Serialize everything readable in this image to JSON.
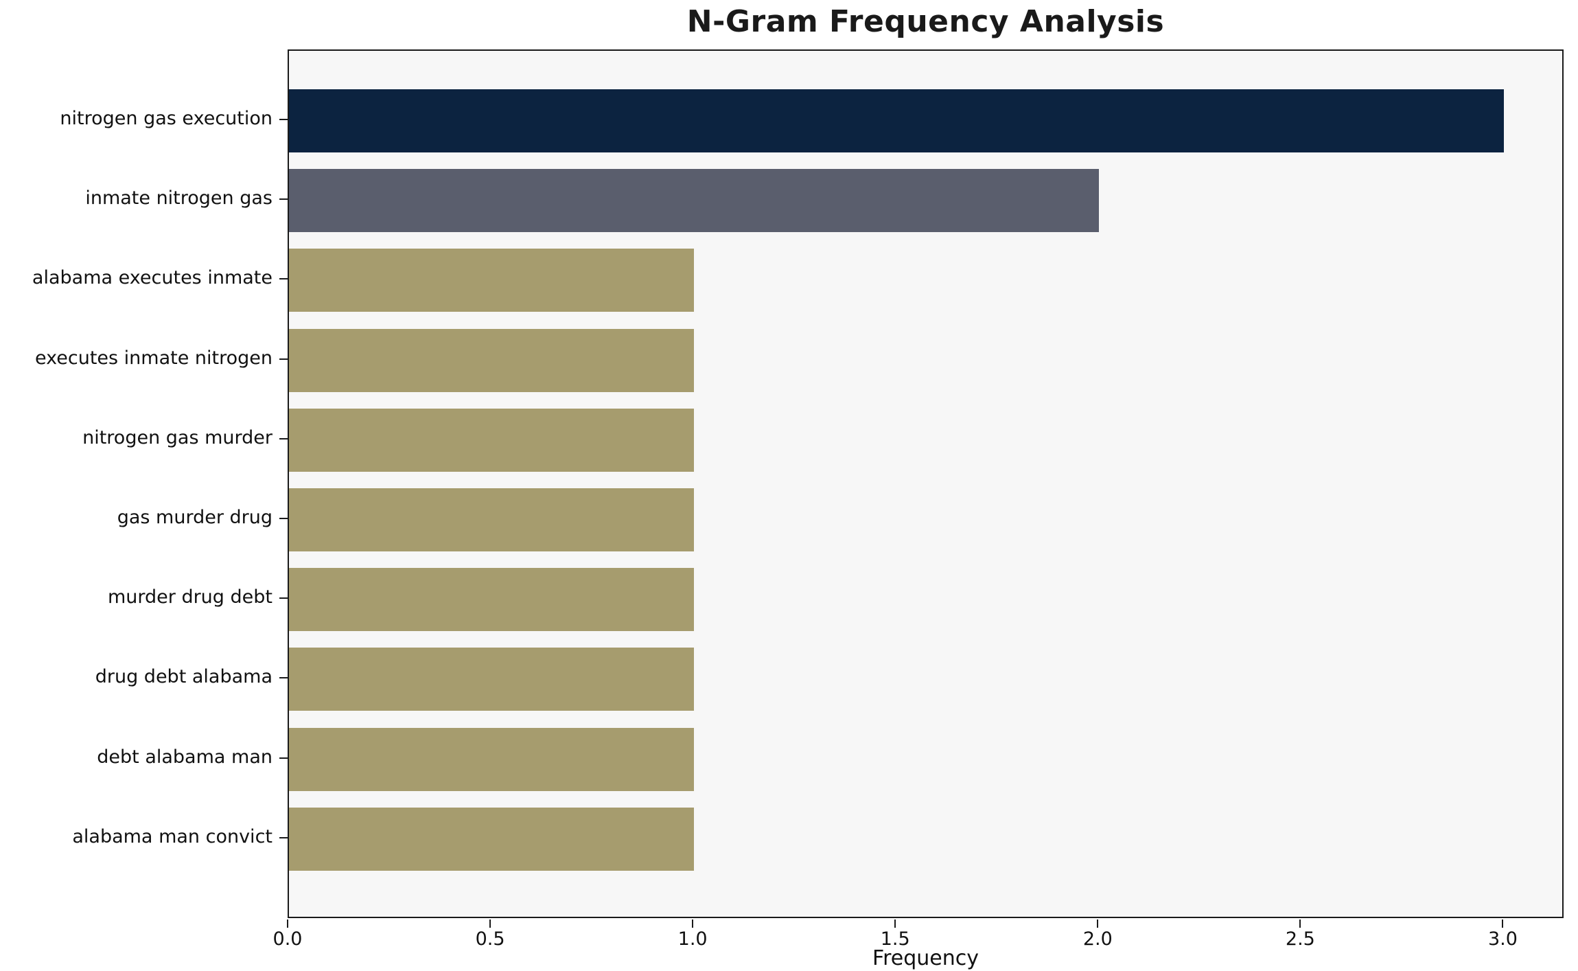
{
  "chart_data": {
    "type": "bar",
    "orientation": "horizontal",
    "title": "N-Gram Frequency Analysis",
    "xlabel": "Frequency",
    "ylabel": "",
    "categories": [
      "nitrogen gas execution",
      "inmate nitrogen gas",
      "alabama executes inmate",
      "executes inmate nitrogen",
      "nitrogen gas murder",
      "gas murder drug",
      "murder drug debt",
      "drug debt alabama",
      "debt alabama man",
      "alabama man convict"
    ],
    "values": [
      3,
      2,
      1,
      1,
      1,
      1,
      1,
      1,
      1,
      1
    ],
    "xlim": [
      0,
      3.15
    ],
    "xticks": [
      "0.0",
      "0.5",
      "1.0",
      "1.5",
      "2.0",
      "2.5",
      "3.0"
    ],
    "bar_colors": [
      "#0c2340",
      "#5a5e6d",
      "#a69c6e",
      "#a69c6e",
      "#a69c6e",
      "#a69c6e",
      "#a69c6e",
      "#a69c6e",
      "#a69c6e",
      "#a69c6e"
    ],
    "grid": false,
    "legend": null,
    "colors": {
      "figure_background": "#ffffff",
      "plot_background": "#f7f7f7",
      "spine": "#1a1a1a",
      "text": "#111111"
    }
  }
}
